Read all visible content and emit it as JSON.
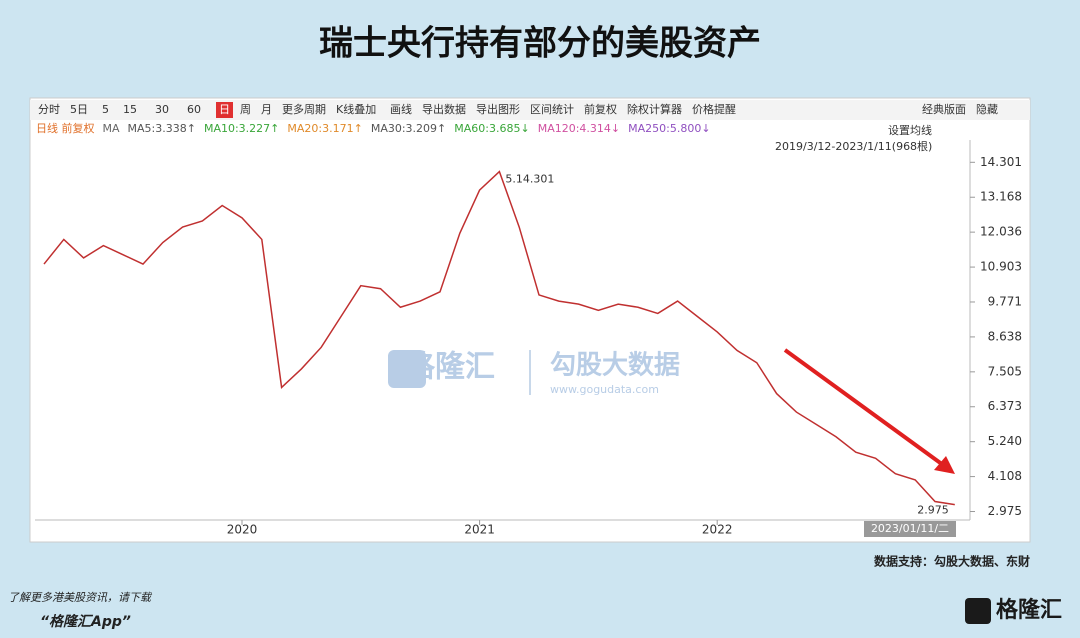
{
  "page_title": "瑞士央行持有部分的美股资产",
  "toolbar": [
    "分时",
    "5日",
    "5",
    "15",
    "30",
    "60",
    "日",
    "周",
    "月",
    "更多周期",
    "K线叠加",
    "画线",
    "导出数据",
    "导出图形",
    "区间统计",
    "前复权",
    "除权计算器",
    "价格提醒",
    "经典版面",
    "隐藏"
  ],
  "ma_legend": [
    {
      "label": "日线 前复权",
      "color": "#e0702a"
    },
    {
      "label": "MA",
      "color": "#666666"
    },
    {
      "label": "MA5:3.338↑",
      "color": "#555555"
    },
    {
      "label": "MA10:3.227↑",
      "color": "#3aa63a"
    },
    {
      "label": "MA20:3.171↑",
      "color": "#e08a2a"
    },
    {
      "label": "MA30:3.209↑",
      "color": "#555555"
    },
    {
      "label": "MA60:3.685↓",
      "color": "#3aa63a"
    },
    {
      "label": "MA120:4.314↓",
      "color": "#d050a0"
    },
    {
      "label": "MA250:5.800↓",
      "color": "#9050c0"
    }
  ],
  "ma_setting": "设置均线",
  "range_label": "2019/3/12-2023/1/11(968根)",
  "chart_data": {
    "type": "line",
    "categories": [
      null,
      null,
      null,
      null,
      null,
      null,
      null,
      null,
      null,
      null,
      "2020",
      null,
      null,
      null,
      null,
      null,
      null,
      null,
      null,
      null,
      null,
      null,
      "2021",
      null,
      null,
      null,
      null,
      null,
      null,
      null,
      null,
      null,
      null,
      null,
      "2022",
      null,
      null,
      null,
      null,
      null,
      null,
      null,
      null,
      null,
      null,
      null,
      null
    ],
    "values": [
      11.0,
      11.8,
      11.2,
      11.6,
      11.3,
      11.0,
      11.7,
      12.2,
      12.4,
      12.9,
      12.5,
      11.8,
      7.0,
      7.6,
      8.3,
      9.3,
      10.3,
      10.2,
      9.6,
      9.8,
      10.1,
      12.0,
      13.4,
      14.0,
      12.2,
      10.0,
      9.8,
      9.7,
      9.5,
      9.7,
      9.6,
      9.4,
      9.8,
      9.3,
      8.8,
      8.2,
      7.8,
      6.8,
      6.2,
      5.8,
      5.4,
      4.9,
      4.7,
      4.2,
      4.0,
      3.3,
      3.2
    ],
    "color": "#c03030",
    "ylim": [
      2.7,
      14.7
    ],
    "yticks": [
      14.301,
      13.168,
      12.036,
      10.903,
      9.771,
      8.638,
      7.505,
      6.373,
      {
        "value": 5.24,
        "label": "5.240"
      },
      4.108,
      2.975
    ],
    "grid": false,
    "high_label": "5.14.301",
    "low_label": "2.975",
    "cursor_date": "2023/01/11/二"
  },
  "watermark": {
    "brand": "格隆汇",
    "brand2": "勾股大数据",
    "url": "www.gogudata.com"
  },
  "source": "数据支持：勾股大数据、东财",
  "footer": {
    "line1": "了解更多港美股资讯，请下载",
    "line2": "“格隆汇App”",
    "logo": "格隆汇"
  }
}
